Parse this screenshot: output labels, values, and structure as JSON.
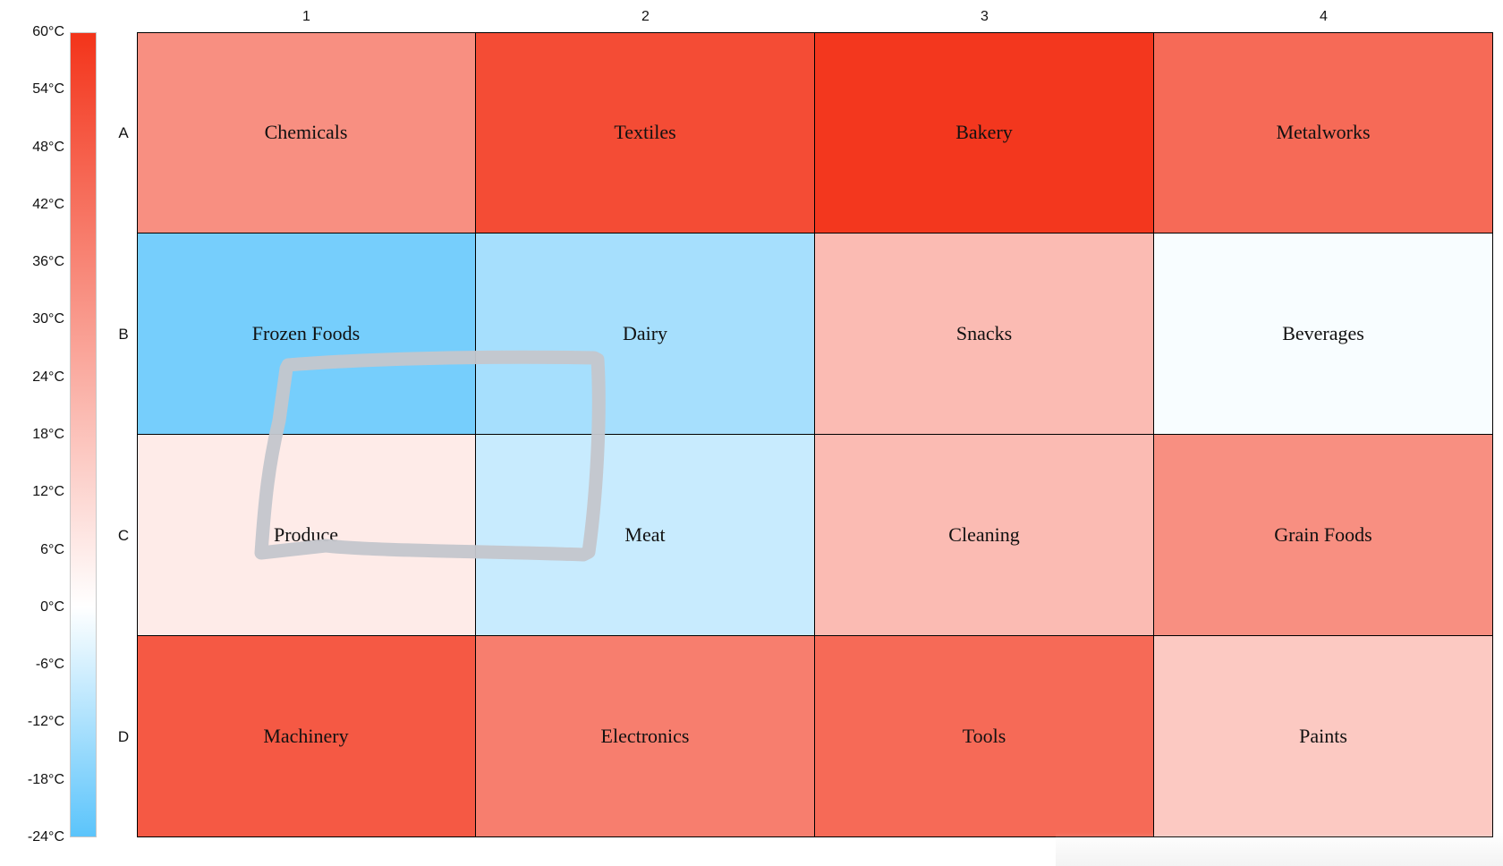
{
  "chart_data": {
    "type": "heatmap",
    "rows": [
      "A",
      "B",
      "C",
      "D"
    ],
    "columns": [
      "1",
      "2",
      "3",
      "4"
    ],
    "cells": [
      [
        {
          "label": "Chemicals",
          "value": 33
        },
        {
          "label": "Textiles",
          "value": 53
        },
        {
          "label": "Bakery",
          "value": 59
        },
        {
          "label": "Metalworks",
          "value": 44
        }
      ],
      [
        {
          "label": "Frozen Foods",
          "value": -20
        },
        {
          "label": "Dairy",
          "value": -13
        },
        {
          "label": "Snacks",
          "value": 20
        },
        {
          "label": "Beverages",
          "value": -1
        }
      ],
      [
        {
          "label": "Produce",
          "value": 6
        },
        {
          "label": "Meat",
          "value": -8
        },
        {
          "label": "Cleaning",
          "value": 20
        },
        {
          "label": "Grain Foods",
          "value": 33
        }
      ],
      [
        {
          "label": "Machinery",
          "value": 49
        },
        {
          "label": "Electronics",
          "value": 38
        },
        {
          "label": "Tools",
          "value": 44
        },
        {
          "label": "Paints",
          "value": 16
        }
      ]
    ],
    "colorbar": {
      "min": -24,
      "max": 60,
      "ticks": [
        "60°C",
        "54°C",
        "48°C",
        "42°C",
        "36°C",
        "30°C",
        "24°C",
        "18°C",
        "12°C",
        "6°C",
        "0°C",
        "-6°C",
        "-12°C",
        "-18°C",
        "-24°C"
      ],
      "gradient": [
        "#5bc4fb",
        "#ffffff",
        "#f3341a"
      ]
    }
  }
}
